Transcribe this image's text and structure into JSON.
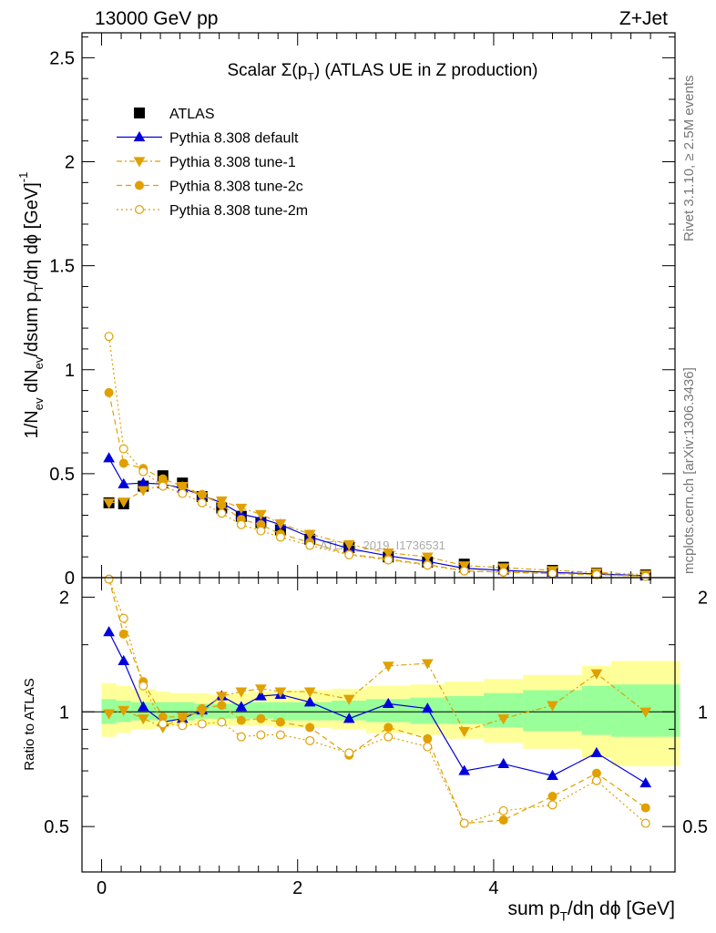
{
  "header": {
    "energy_label": "13000 GeV pp",
    "process_label": "Z+Jet"
  },
  "side_labels": {
    "rivet": "Rivet 3.1.10, ≥ 2.5M events",
    "source": "mcplots.cern.ch [arXiv:1306.3436]"
  },
  "watermark": "ATLAS_2019_I1736531",
  "colors": {
    "atlas": "#000000",
    "default": "#0000dd",
    "tunes": "#e0a000",
    "band_inner": "#99ff99",
    "band_outer": "#ffff99"
  },
  "chart_data": [
    {
      "type": "scatter",
      "panel": "main",
      "title_prefix": "Scalar Σ(p",
      "title_sub": "T",
      "title_suffix": ") (ATLAS UE in Z production)",
      "ylabel_parts": [
        "1/N",
        "ev",
        " dN",
        "ev",
        "/dsum p",
        "T",
        "/dη dϕ  [GeV]",
        "-1"
      ],
      "xlim": [
        -0.2,
        5.85
      ],
      "ylim": [
        0,
        2.62
      ],
      "yticks": [
        0,
        0.5,
        1,
        1.5,
        2,
        2.5
      ],
      "ytick_labels": [
        "0",
        "0.5",
        "1",
        "1.5",
        "2",
        "2.5"
      ],
      "x": [
        0.075,
        0.225,
        0.425,
        0.625,
        0.825,
        1.025,
        1.225,
        1.425,
        1.625,
        1.825,
        2.125,
        2.525,
        2.925,
        3.325,
        3.7,
        4.1,
        4.6,
        5.05,
        5.55
      ],
      "series": [
        {
          "name": "ATLAS",
          "style": "atlas",
          "values": [
            0.36,
            0.355,
            0.44,
            0.49,
            0.455,
            0.39,
            0.335,
            0.295,
            0.265,
            0.23,
            0.185,
            0.145,
            0.1,
            0.075,
            0.065,
            0.05,
            0.035,
            0.022,
            0.013
          ]
        },
        {
          "name": "Pythia 8.308 default",
          "style": "default",
          "values": [
            0.575,
            0.45,
            0.455,
            0.45,
            0.43,
            0.395,
            0.36,
            0.305,
            0.285,
            0.255,
            0.195,
            0.14,
            0.105,
            0.078,
            0.045,
            0.035,
            0.025,
            0.018,
            0.009
          ]
        },
        {
          "name": "Pythia 8.308 tune-1",
          "style": "tune1",
          "values": [
            0.36,
            0.365,
            0.42,
            0.445,
            0.44,
            0.39,
            0.37,
            0.335,
            0.305,
            0.26,
            0.21,
            0.16,
            0.12,
            0.1,
            0.058,
            0.048,
            0.035,
            0.025,
            0.014
          ]
        },
        {
          "name": "Pythia 8.308 tune-2c",
          "style": "tune2c",
          "values": [
            0.89,
            0.55,
            0.525,
            0.475,
            0.44,
            0.4,
            0.35,
            0.28,
            0.255,
            0.21,
            0.17,
            0.112,
            0.09,
            0.063,
            0.033,
            0.026,
            0.02,
            0.015,
            0.007
          ]
        },
        {
          "name": "Pythia 8.308 tune-2m",
          "style": "tune2m",
          "values": [
            1.16,
            0.62,
            0.51,
            0.44,
            0.405,
            0.36,
            0.31,
            0.255,
            0.225,
            0.195,
            0.155,
            0.11,
            0.085,
            0.06,
            0.032,
            0.027,
            0.02,
            0.014,
            0.006
          ]
        }
      ]
    },
    {
      "type": "scatter",
      "panel": "ratio",
      "xlabel_parts": [
        "sum p",
        "T",
        "/dη dϕ [GeV]"
      ],
      "ylabel": "Ratio to ATLAS",
      "xlim": [
        -0.2,
        5.85
      ],
      "ylim": [
        0.38,
        2.25
      ],
      "xticks": [
        0,
        2,
        4
      ],
      "xtick_labels": [
        "0",
        "2",
        "4"
      ],
      "yticks": [
        0.5,
        1,
        2
      ],
      "ytick_labels": [
        "0.5",
        "1",
        "2"
      ],
      "x": [
        0.075,
        0.225,
        0.425,
        0.625,
        0.825,
        1.025,
        1.225,
        1.425,
        1.625,
        1.825,
        2.125,
        2.525,
        2.925,
        3.325,
        3.7,
        4.1,
        4.6,
        5.05,
        5.55
      ],
      "bin_edges": [
        0,
        0.15,
        0.3,
        0.55,
        0.7,
        0.95,
        1.1,
        1.35,
        1.5,
        1.75,
        1.9,
        2.35,
        2.7,
        3.15,
        3.5,
        3.9,
        4.3,
        4.9,
        5.2,
        5.9
      ],
      "band_outer": [
        [
          0.86,
          1.19
        ],
        [
          0.88,
          1.17
        ],
        [
          0.9,
          1.15
        ],
        [
          0.91,
          1.13
        ],
        [
          0.92,
          1.12
        ],
        [
          0.92,
          1.12
        ],
        [
          0.92,
          1.11
        ],
        [
          0.92,
          1.12
        ],
        [
          0.92,
          1.13
        ],
        [
          0.91,
          1.13
        ],
        [
          0.91,
          1.14
        ],
        [
          0.9,
          1.15
        ],
        [
          0.88,
          1.17
        ],
        [
          0.87,
          1.18
        ],
        [
          0.85,
          1.2
        ],
        [
          0.83,
          1.22
        ],
        [
          0.8,
          1.25
        ],
        [
          0.76,
          1.32
        ],
        [
          0.72,
          1.36
        ]
      ],
      "band_inner": [
        [
          0.93,
          1.08
        ],
        [
          0.94,
          1.07
        ],
        [
          0.95,
          1.06
        ],
        [
          0.95,
          1.06
        ],
        [
          0.95,
          1.06
        ],
        [
          0.96,
          1.05
        ],
        [
          0.96,
          1.05
        ],
        [
          0.96,
          1.05
        ],
        [
          0.96,
          1.06
        ],
        [
          0.95,
          1.06
        ],
        [
          0.95,
          1.06
        ],
        [
          0.95,
          1.07
        ],
        [
          0.94,
          1.08
        ],
        [
          0.93,
          1.09
        ],
        [
          0.93,
          1.1
        ],
        [
          0.91,
          1.12
        ],
        [
          0.89,
          1.14
        ],
        [
          0.87,
          1.17
        ],
        [
          0.86,
          1.18
        ]
      ],
      "series": [
        {
          "name": "Pythia 8.308 default",
          "style": "default",
          "values": [
            1.62,
            1.36,
            1.03,
            0.94,
            0.96,
            1.01,
            1.1,
            1.03,
            1.1,
            1.11,
            1.06,
            0.96,
            1.05,
            1.02,
            0.7,
            0.73,
            0.68,
            0.78,
            0.65
          ]
        },
        {
          "name": "Pythia 8.308 tune-1",
          "style": "tune1",
          "values": [
            0.99,
            1.01,
            0.96,
            0.91,
            0.97,
            1.0,
            1.1,
            1.13,
            1.15,
            1.13,
            1.13,
            1.08,
            1.32,
            1.34,
            0.89,
            0.96,
            1.04,
            1.26,
            1.0
          ]
        },
        {
          "name": "Pythia 8.308 tune-2c",
          "style": "tune2c",
          "values": [
            2.23,
            1.6,
            1.2,
            0.97,
            0.97,
            1.02,
            1.04,
            0.95,
            0.96,
            0.94,
            0.91,
            0.77,
            0.91,
            0.85,
            0.51,
            0.52,
            0.6,
            0.69,
            0.56
          ]
        },
        {
          "name": "Pythia 8.308 tune-2m",
          "style": "tune2m",
          "values": [
            2.23,
            1.76,
            1.17,
            0.93,
            0.92,
            0.93,
            0.94,
            0.86,
            0.87,
            0.87,
            0.84,
            0.78,
            0.86,
            0.81,
            0.51,
            0.55,
            0.57,
            0.66,
            0.51
          ]
        }
      ]
    }
  ]
}
